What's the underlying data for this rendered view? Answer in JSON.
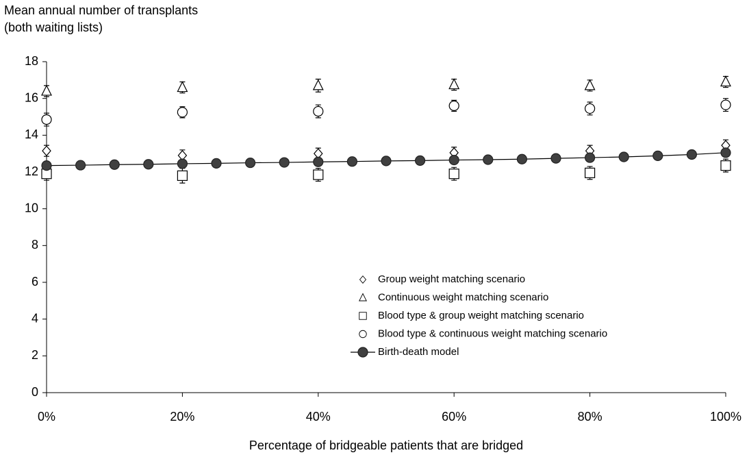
{
  "chart_data": {
    "type": "scatter",
    "ylabel": [
      "Mean annual number of transplants",
      "(both waiting lists)"
    ],
    "xlabel": "Percentage of bridgeable patients that are bridged",
    "xlim": [
      0,
      100
    ],
    "xticks": [
      {
        "value": 0,
        "label": "0%"
      },
      {
        "value": 20,
        "label": "20%"
      },
      {
        "value": 40,
        "label": "40%"
      },
      {
        "value": 60,
        "label": "60%"
      },
      {
        "value": 80,
        "label": "80%"
      },
      {
        "value": 100,
        "label": "100%"
      }
    ],
    "ylim": [
      0,
      18
    ],
    "yticks": [
      0,
      2,
      4,
      6,
      8,
      10,
      12,
      14,
      16,
      18
    ],
    "legend": "lower center",
    "series": [
      {
        "name": "Group weight matching scenario",
        "marker": "diamond",
        "color": "#000000",
        "x": [
          0,
          20,
          40,
          60,
          80,
          100
        ],
        "values": [
          13.15,
          12.9,
          13.0,
          13.05,
          13.15,
          13.45
        ],
        "errors": [
          0.3,
          0.3,
          0.3,
          0.3,
          0.3,
          0.3
        ]
      },
      {
        "name": "Continuous weight matching scenario",
        "marker": "triangle",
        "color": "#000000",
        "x": [
          0,
          20,
          40,
          60,
          80,
          100
        ],
        "values": [
          16.4,
          16.6,
          16.7,
          16.75,
          16.7,
          16.9
        ],
        "errors": [
          0.3,
          0.3,
          0.35,
          0.3,
          0.3,
          0.3
        ]
      },
      {
        "name": "Blood type & group weight matching scenario",
        "marker": "square",
        "color": "#000000",
        "x": [
          0,
          20,
          40,
          60,
          80,
          100
        ],
        "values": [
          11.9,
          11.8,
          11.85,
          11.9,
          11.95,
          12.35
        ],
        "errors": [
          0.35,
          0.4,
          0.35,
          0.35,
          0.35,
          0.35
        ]
      },
      {
        "name": "Blood type & continuous weight matching scenario",
        "marker": "circle",
        "color": "#000000",
        "x": [
          0,
          20,
          40,
          60,
          80,
          100
        ],
        "values": [
          14.85,
          15.25,
          15.3,
          15.6,
          15.45,
          15.65
        ],
        "errors": [
          0.35,
          0.3,
          0.35,
          0.3,
          0.35,
          0.35
        ]
      },
      {
        "name": "Birth-death model",
        "marker": "filled-circle",
        "line": true,
        "color": "#404040",
        "x": [
          0,
          5,
          10,
          15,
          20,
          25,
          30,
          35,
          40,
          45,
          50,
          55,
          60,
          65,
          70,
          75,
          80,
          85,
          90,
          95,
          100
        ],
        "values": [
          12.35,
          12.37,
          12.4,
          12.42,
          12.45,
          12.47,
          12.5,
          12.52,
          12.55,
          12.57,
          12.6,
          12.62,
          12.65,
          12.67,
          12.7,
          12.74,
          12.78,
          12.82,
          12.88,
          12.95,
          13.05
        ]
      }
    ]
  }
}
